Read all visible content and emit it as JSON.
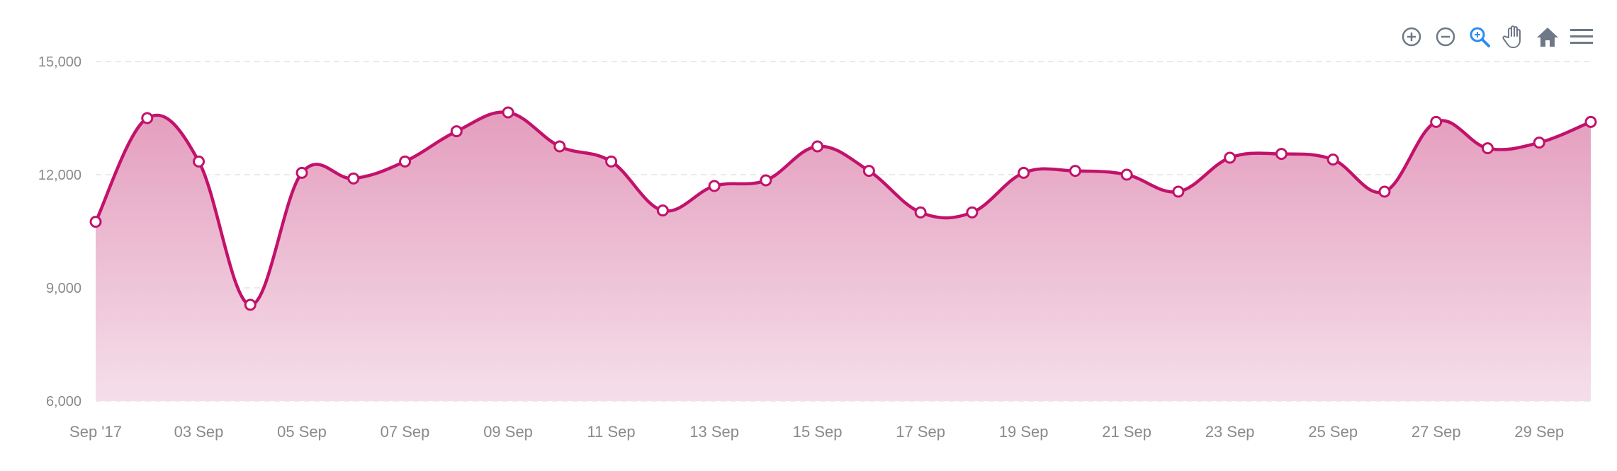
{
  "chart_data": {
    "type": "area",
    "title": "",
    "xlabel": "",
    "ylabel": "",
    "ylim": [
      6000,
      15000
    ],
    "yticks": [
      "6,000",
      "9,000",
      "12,000",
      "15,000"
    ],
    "ytick_values": [
      6000,
      9000,
      12000,
      15000
    ],
    "grid": true,
    "x": [
      "Sep 01",
      "Sep 02",
      "Sep 03",
      "Sep 04",
      "Sep 05",
      "Sep 06",
      "Sep 07",
      "Sep 08",
      "Sep 09",
      "Sep 10",
      "Sep 11",
      "Sep 12",
      "Sep 13",
      "Sep 14",
      "Sep 15",
      "Sep 16",
      "Sep 17",
      "Sep 18",
      "Sep 19",
      "Sep 20",
      "Sep 21",
      "Sep 22",
      "Sep 23",
      "Sep 24",
      "Sep 25",
      "Sep 26",
      "Sep 27",
      "Sep 28",
      "Sep 29",
      "Sep 30"
    ],
    "xtick_labels": [
      "Sep '17",
      "03 Sep",
      "05 Sep",
      "07 Sep",
      "09 Sep",
      "11 Sep",
      "13 Sep",
      "15 Sep",
      "17 Sep",
      "19 Sep",
      "21 Sep",
      "23 Sep",
      "25 Sep",
      "27 Sep",
      "29 Sep"
    ],
    "series": [
      {
        "values": [
          10750,
          13500,
          12350,
          8550,
          12050,
          11900,
          12350,
          13150,
          13650,
          12750,
          12350,
          11050,
          11700,
          11850,
          12750,
          12100,
          11000,
          11000,
          12050,
          12100,
          12000,
          11550,
          12450,
          12550,
          12400,
          11550,
          13400,
          12700,
          12850,
          13400
        ]
      }
    ],
    "colors": {
      "line": "#c2126b",
      "fill_top": "#e49ebe",
      "fill_bottom": "#f5dfea",
      "marker_fill": "#ffffff"
    }
  },
  "toolbar": {
    "icons": [
      "zoom-in-icon",
      "zoom-out-icon",
      "selection-zoom-icon",
      "pan-hand-icon",
      "home-icon",
      "menu-icon"
    ],
    "active_color": "#2d8cf0",
    "icon_color": "#6e7886"
  }
}
